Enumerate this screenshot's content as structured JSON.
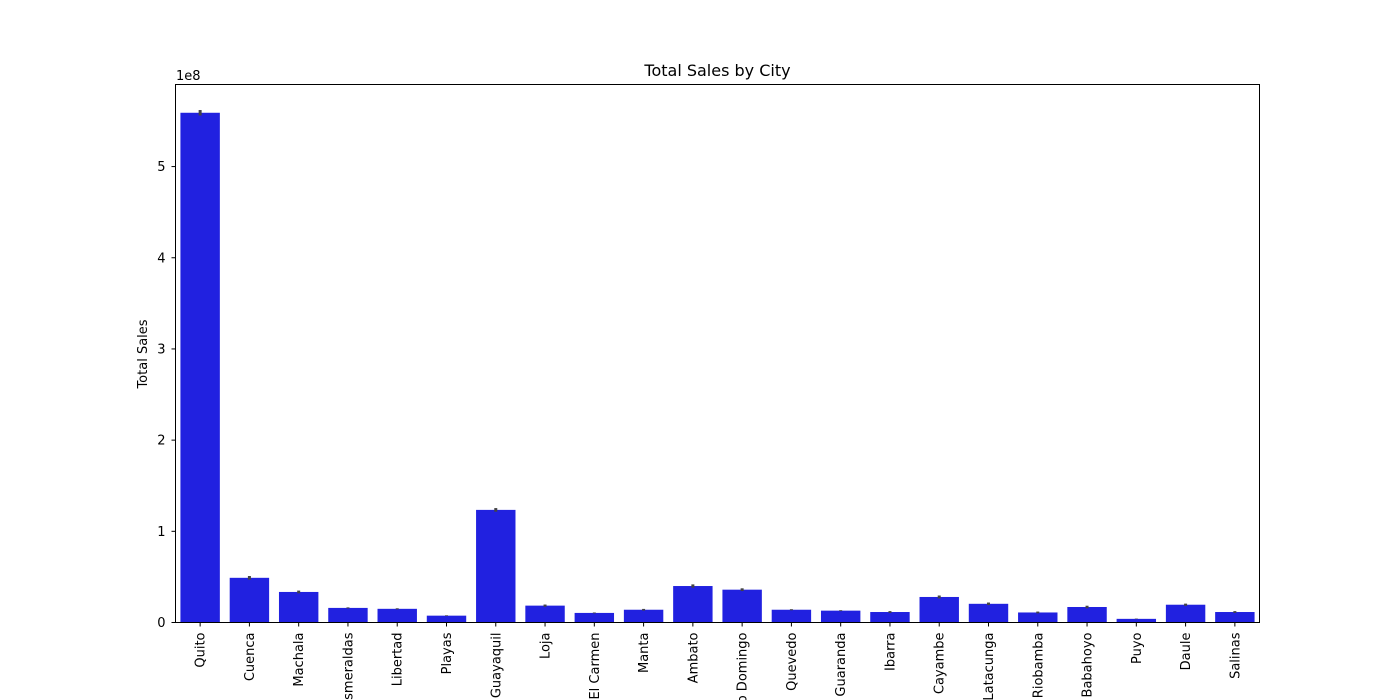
{
  "chart_data": {
    "type": "bar",
    "title": "Total Sales by City",
    "xlabel": "",
    "ylabel": "Total Sales",
    "offset_label": "1e8",
    "scale": 100000000,
    "ylim": [
      0,
      590000000
    ],
    "yticks": [
      0,
      100000000,
      200000000,
      300000000,
      400000000,
      500000000
    ],
    "ytick_labels": [
      "0",
      "1",
      "2",
      "3",
      "4",
      "5"
    ],
    "grid": false,
    "legend": "none",
    "bar_color": "#2121e0",
    "errbar_color": "#444444",
    "categories": [
      "Quito",
      "Cuenca",
      "Machala",
      "Esmeraldas",
      "Libertad",
      "Playas",
      "Guayaquil",
      "Loja",
      "El Carmen",
      "Manta",
      "Ambato",
      "Santo Domingo",
      "Quevedo",
      "Guaranda",
      "Ibarra",
      "Cayambe",
      "Latacunga",
      "Riobamba",
      "Babahoyo",
      "Puyo",
      "Daule",
      "Salinas"
    ],
    "values": [
      559000000,
      49000000,
      33500000,
      16000000,
      15000000,
      7500000,
      123500000,
      18500000,
      10500000,
      14000000,
      40000000,
      36000000,
      14000000,
      13000000,
      11500000,
      28000000,
      20500000,
      11000000,
      17000000,
      4000000,
      19500000,
      11500000
    ],
    "errors": [
      3000000,
      2000000,
      1500000,
      600000,
      600000,
      400000,
      2000000,
      1200000,
      500000,
      900000,
      1800000,
      1500000,
      600000,
      500000,
      1000000,
      1600000,
      1400000,
      1000000,
      1400000,
      300000,
      1200000,
      1000000
    ]
  }
}
